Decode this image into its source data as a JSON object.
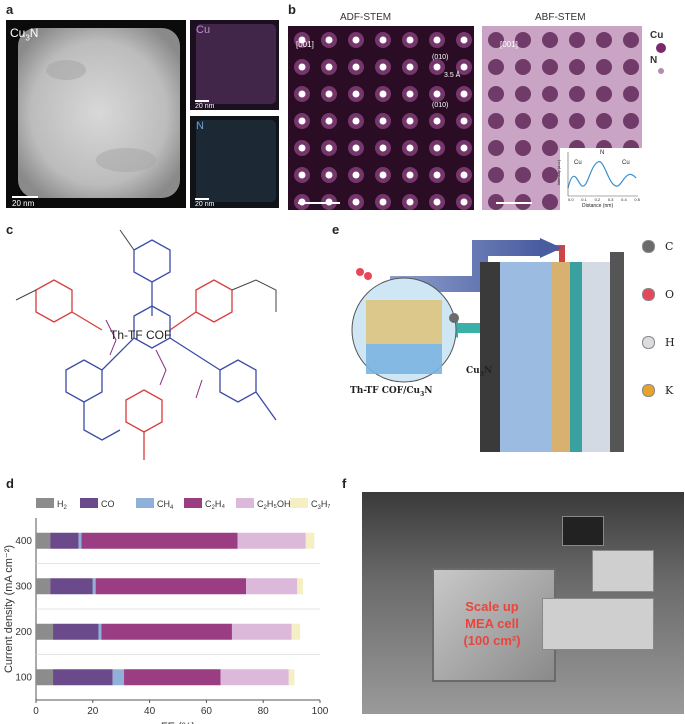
{
  "panels": {
    "a": {
      "label": "a",
      "main_label": "Cu",
      "main_label_sub": "3",
      "main_label_tail": "N",
      "main_scale": "20 nm",
      "map_cu_label": "Cu",
      "map_cu_scale": "20 nm",
      "map_n_label": "N",
      "map_n_scale": "20 nm"
    },
    "b": {
      "label": "b",
      "adf_title": "ADF-STEM",
      "abf_title": "ABF-STEM",
      "adf_zone": "[001]",
      "abf_zone": "[001]",
      "plane_top": "(010)",
      "plane_bottom": "(010)",
      "spacing": "3.5 Å",
      "legend_cu": "Cu",
      "legend_n": "N",
      "profile_ylabel": "Intensity (a.u.)",
      "profile_xlabel": "Distance (nm)",
      "profile_ticks": [
        "0.0",
        "0.1",
        "0.2",
        "0.3",
        "0.4",
        "0.5"
      ],
      "profile_cu_left": "Cu",
      "profile_n": "N",
      "profile_cu_right": "Cu"
    },
    "c": {
      "label": "c",
      "cof_name": "Th-TF COF"
    },
    "e": {
      "label": "e",
      "inset_label": "Th-TF COF/Cu",
      "inset_label_sub": "3",
      "inset_label_tail": "N",
      "cu3n_label": "Cu",
      "cu3n_sub": "3",
      "cu3n_tail": "N",
      "elements": [
        "C",
        "O",
        "H",
        "K"
      ],
      "element_colors": [
        "#6b6b6b",
        "#e8475a",
        "#dcdce0",
        "#e6a52a"
      ]
    },
    "d": {
      "label": "d"
    },
    "f": {
      "label": "f",
      "cell_line1": "Scale up",
      "cell_line2": "MEA cell",
      "cell_line3": "(100 cm²)"
    }
  },
  "chart_data": {
    "type": "bar",
    "orientation": "horizontal",
    "stacked": true,
    "categories": [
      "400",
      "300",
      "200",
      "100"
    ],
    "xlabel": "FE (%)",
    "ylabel": "Current density (mA cm⁻²)",
    "xlim": [
      0,
      100
    ],
    "xticks": [
      "0",
      "20",
      "40",
      "60",
      "80",
      "100"
    ],
    "legend_position": "top",
    "series": [
      {
        "name": "H2",
        "label_main": "H",
        "label_sub": "2",
        "label_tail": "",
        "color": "#8c8c8c",
        "values": [
          5,
          5,
          6,
          6
        ]
      },
      {
        "name": "CO",
        "label_main": "CO",
        "label_sub": "",
        "label_tail": "",
        "color": "#6a4a8a",
        "values": [
          10,
          15,
          16,
          21
        ]
      },
      {
        "name": "CH4",
        "label_main": "CH",
        "label_sub": "4",
        "label_tail": "",
        "color": "#8fb0d8",
        "values": [
          1,
          1,
          1,
          4
        ]
      },
      {
        "name": "C2H4",
        "label_main": "C",
        "label_sub": "2",
        "label_tail": "H₄",
        "color": "#9b3d82",
        "values": [
          55,
          53,
          46,
          34
        ]
      },
      {
        "name": "C2H5OH",
        "label_main": "C",
        "label_sub": "2",
        "label_tail": "H₅OH",
        "color": "#dcb8da",
        "values": [
          24,
          18,
          21,
          24
        ]
      },
      {
        "name": "C3H7OH",
        "label_main": "C",
        "label_sub": "3",
        "label_tail": "H₇OH",
        "color": "#f5f0c3",
        "values": [
          3,
          2,
          3,
          2
        ]
      }
    ]
  }
}
